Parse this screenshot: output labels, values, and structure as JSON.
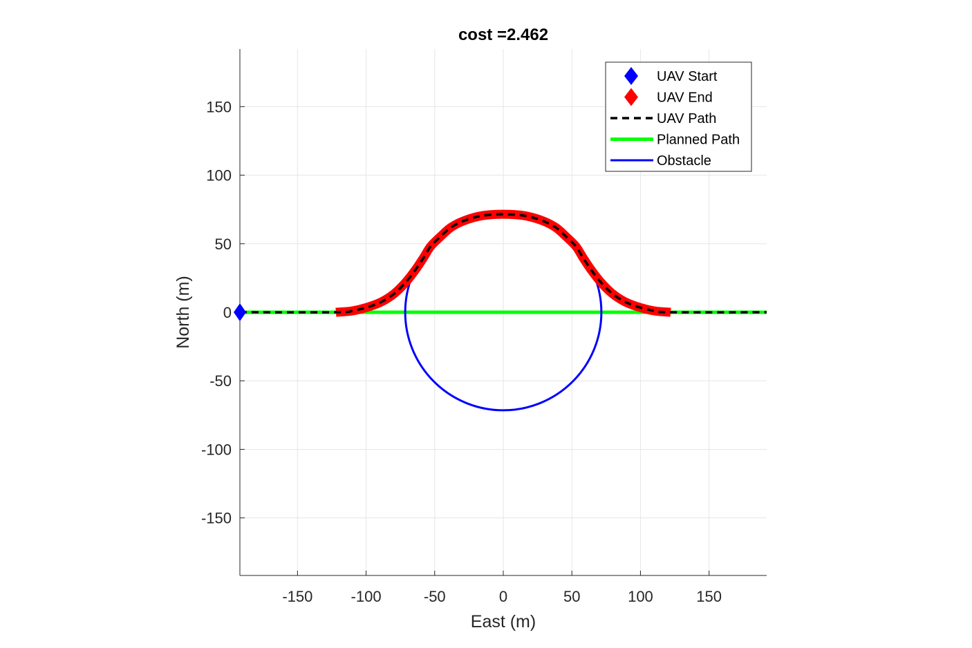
{
  "chart_data": {
    "type": "line",
    "title": "cost =2.462",
    "xlabel": "East (m)",
    "ylabel": "North (m)",
    "xlim": [
      -192,
      192
    ],
    "ylim": [
      -192,
      192
    ],
    "grid": true,
    "axis_equal": true,
    "legend_position": "top-right",
    "x_ticks": [
      -150,
      -100,
      -50,
      0,
      50,
      100,
      150
    ],
    "x_tick_labels": [
      "-150",
      "-100",
      "-50",
      "0",
      "50",
      "100",
      "150"
    ],
    "y_ticks": [
      150,
      100,
      50,
      0,
      -50,
      -100,
      -150
    ],
    "y_tick_labels": [
      "150",
      "100",
      "50",
      "0",
      "-50",
      "-100",
      "-150"
    ],
    "obstacle": {
      "center": [
        0,
        0
      ],
      "radius": 71.5
    },
    "series": [
      {
        "name": "UAV Start",
        "kind": "marker",
        "color": "#0000ff",
        "points": [
          [
            -192,
            0
          ]
        ]
      },
      {
        "name": "UAV End",
        "kind": "marker-path",
        "color": "#ff0000",
        "note_shape": "diamond"
      },
      {
        "name": "UAV Path",
        "kind": "dashed-line",
        "color": "#000000"
      },
      {
        "name": "Planned Path",
        "kind": "line",
        "color": "#00ff00",
        "points": [
          [
            -192,
            0
          ],
          [
            192,
            0
          ]
        ]
      },
      {
        "name": "Obstacle",
        "kind": "circle",
        "color": "#0000ff"
      }
    ],
    "avoidance_path": [
      [
        -192,
        0
      ],
      [
        -122,
        0
      ],
      [
        -110,
        1
      ],
      [
        -98,
        4
      ],
      [
        -88,
        8
      ],
      [
        -79,
        14
      ],
      [
        -71,
        22
      ],
      [
        -64,
        31
      ],
      [
        -58,
        40
      ],
      [
        -53,
        48
      ],
      [
        -46,
        55
      ],
      [
        -38,
        62
      ],
      [
        -28,
        67
      ],
      [
        -15,
        70.5
      ],
      [
        0,
        71.5
      ],
      [
        15,
        70.5
      ],
      [
        28,
        67
      ],
      [
        38,
        62
      ],
      [
        46,
        55
      ],
      [
        53,
        48
      ],
      [
        58,
        40
      ],
      [
        64,
        31
      ],
      [
        71,
        22
      ],
      [
        79,
        14
      ],
      [
        88,
        8
      ],
      [
        98,
        4
      ],
      [
        110,
        1
      ],
      [
        122,
        0
      ],
      [
        192,
        0
      ]
    ],
    "end_markers_range": [
      -122,
      122
    ]
  }
}
